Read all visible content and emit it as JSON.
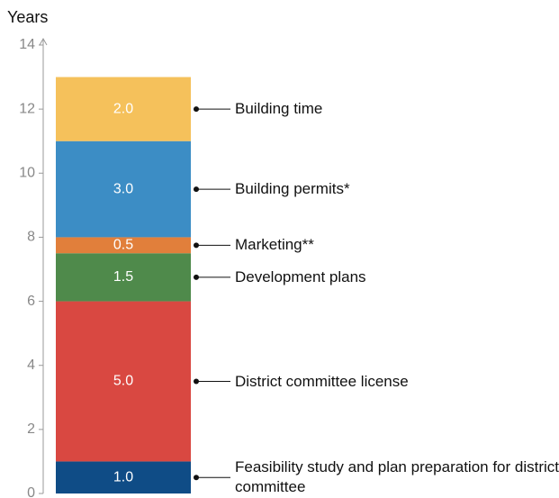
{
  "chart_data": {
    "type": "stacked-bar",
    "y_label": "Years",
    "categories": [
      null
    ],
    "series": [
      {
        "name": "Feasibility study and plan preparation for district committee",
        "color": "#0f4c86",
        "values": [
          1
        ],
        "value_labels": [
          "1.0"
        ]
      },
      {
        "name": "District committee license",
        "color": "#d94841",
        "values": [
          5
        ],
        "value_labels": [
          "5.0"
        ]
      },
      {
        "name": "Development plans",
        "color": "#4f8a4b",
        "values": [
          1.5
        ],
        "value_labels": [
          "1.5"
        ]
      },
      {
        "name": "Marketing**",
        "color": "#e17f3b",
        "values": [
          0.5
        ],
        "value_labels": [
          "0.5"
        ]
      },
      {
        "name": "Building permits*",
        "color": "#3c8dc5",
        "values": [
          3
        ],
        "value_labels": [
          "3.0"
        ]
      },
      {
        "name": "Building time",
        "color": "#f5c15b",
        "values": [
          2
        ],
        "value_labels": [
          "2.0"
        ]
      }
    ],
    "ylim": [
      0,
      14
    ],
    "yticks": [
      0,
      2,
      4,
      6,
      8,
      10,
      12,
      14
    ]
  }
}
